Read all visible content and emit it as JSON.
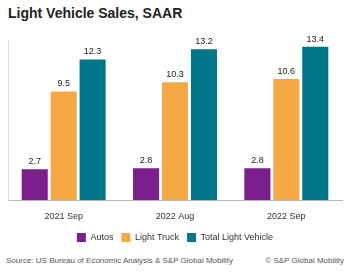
{
  "chart_data": {
    "type": "bar",
    "title": "Light Vehicle Sales, SAAR",
    "annotations": [
      "Source: US Bureau of Economic Analysis & S&P Global Mobility",
      "© S&P Global Mobility"
    ],
    "categories": [
      "2021 Sep",
      "2022 Aug",
      "2022 Sep"
    ],
    "series": [
      {
        "name": "Autos",
        "color": "#7b1f8e",
        "values": [
          2.7,
          2.8,
          2.8
        ]
      },
      {
        "name": "Light Truck",
        "color": "#f5a843",
        "values": [
          9.5,
          10.3,
          10.6
        ]
      },
      {
        "name": "Total Light Vehicle",
        "color": "#00778b",
        "values": [
          12.3,
          13.2,
          13.4
        ]
      }
    ],
    "ylim": [
      0,
      14
    ],
    "grid": false,
    "legend": "bottom",
    "data_labels": true,
    "tick_labels": "x"
  }
}
